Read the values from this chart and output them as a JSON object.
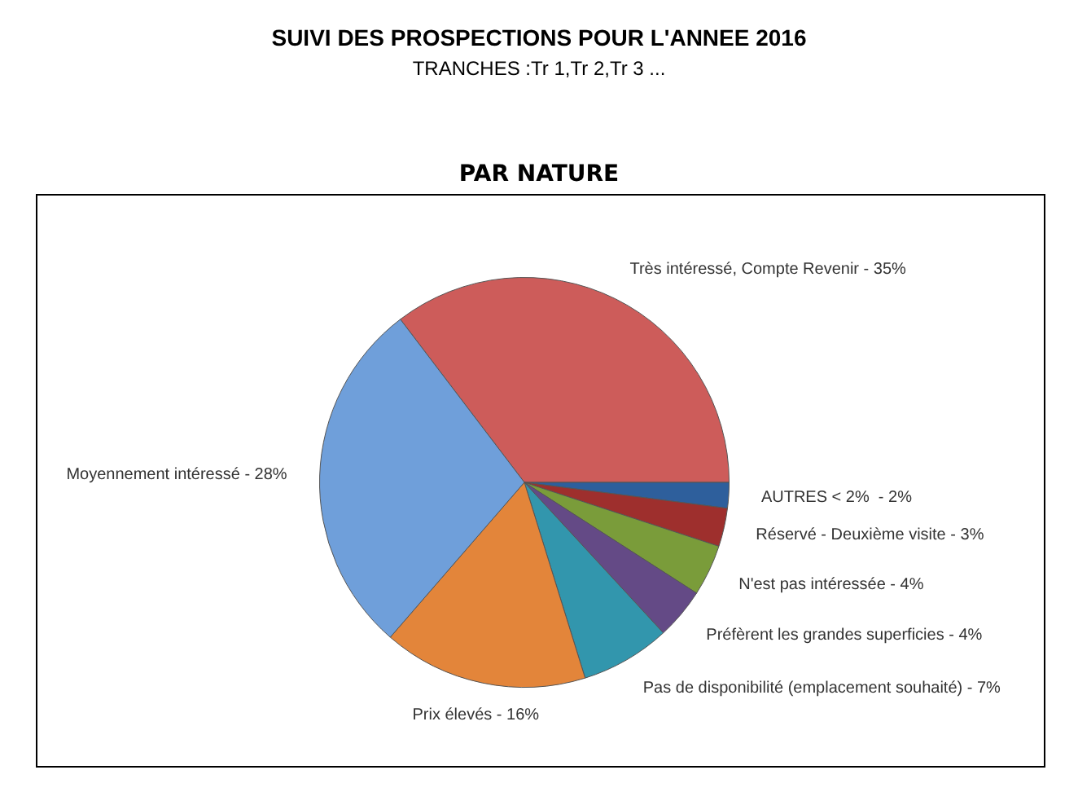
{
  "chart_data": {
    "type": "pie",
    "title": "SUIVI DES PROSPECTIONS POUR L'ANNEE 2016",
    "subtitle": "TRANCHES :Tr 1,Tr 2,Tr 3 ...",
    "annotations": [
      "PAR NATURE"
    ],
    "categories": [
      "Très intéressé, Compte Revenir - 35%",
      "AUTRES < 2%  - 2%",
      "Réservé - Deuxième visite - 3%",
      "N'est pas intéressée - 4%",
      "Préfèrent les grandes superficies - 4%",
      "Pas de disponibilité (emplacement souhaité) - 7%",
      "Prix élevés - 16%",
      "Moyennement intéressé - 28%"
    ],
    "values": [
      35,
      2,
      3,
      4,
      4,
      7,
      16,
      28
    ],
    "colors": [
      "#cd5c5a",
      "#2e5f9c",
      "#9e2f2d",
      "#7a9c3a",
      "#644a86",
      "#3296ad",
      "#e3853a",
      "#6f9fda"
    ],
    "legend": false
  }
}
